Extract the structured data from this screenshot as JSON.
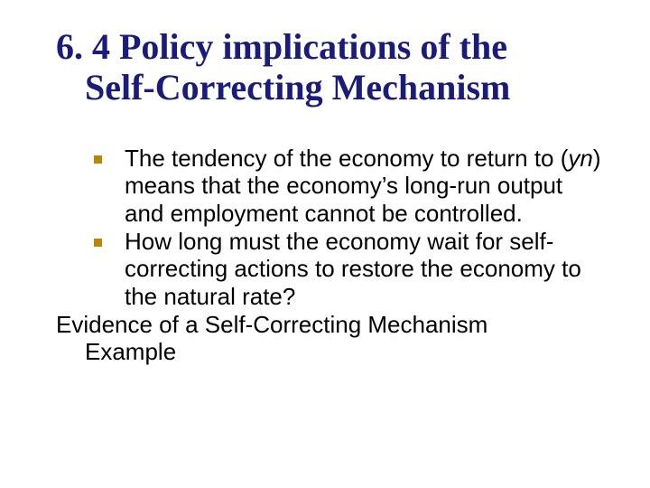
{
  "colors": {
    "title": "#1b1b7a",
    "body": "#000000",
    "bullet": "#b8860b",
    "background": "#ffffff"
  },
  "typography": {
    "title_font": "Times New Roman",
    "title_size_pt": 40,
    "body_font": "Verdana",
    "body_size_pt": 26
  },
  "title": {
    "line1": "6. 4 Policy implications of the",
    "line2": "Self-Correcting Mechanism"
  },
  "bullets": [
    {
      "pre": "The tendency of the economy to return to (",
      "italic": "yn",
      "post": ") means that the economy’s long-run output and employment cannot be controlled."
    },
    {
      "text": "How long must the economy wait for self-correcting actions to restore the economy to the natural rate?"
    }
  ],
  "trailing": {
    "line1": "Evidence of a Self-Correcting Mechanism",
    "line2": "Example"
  }
}
